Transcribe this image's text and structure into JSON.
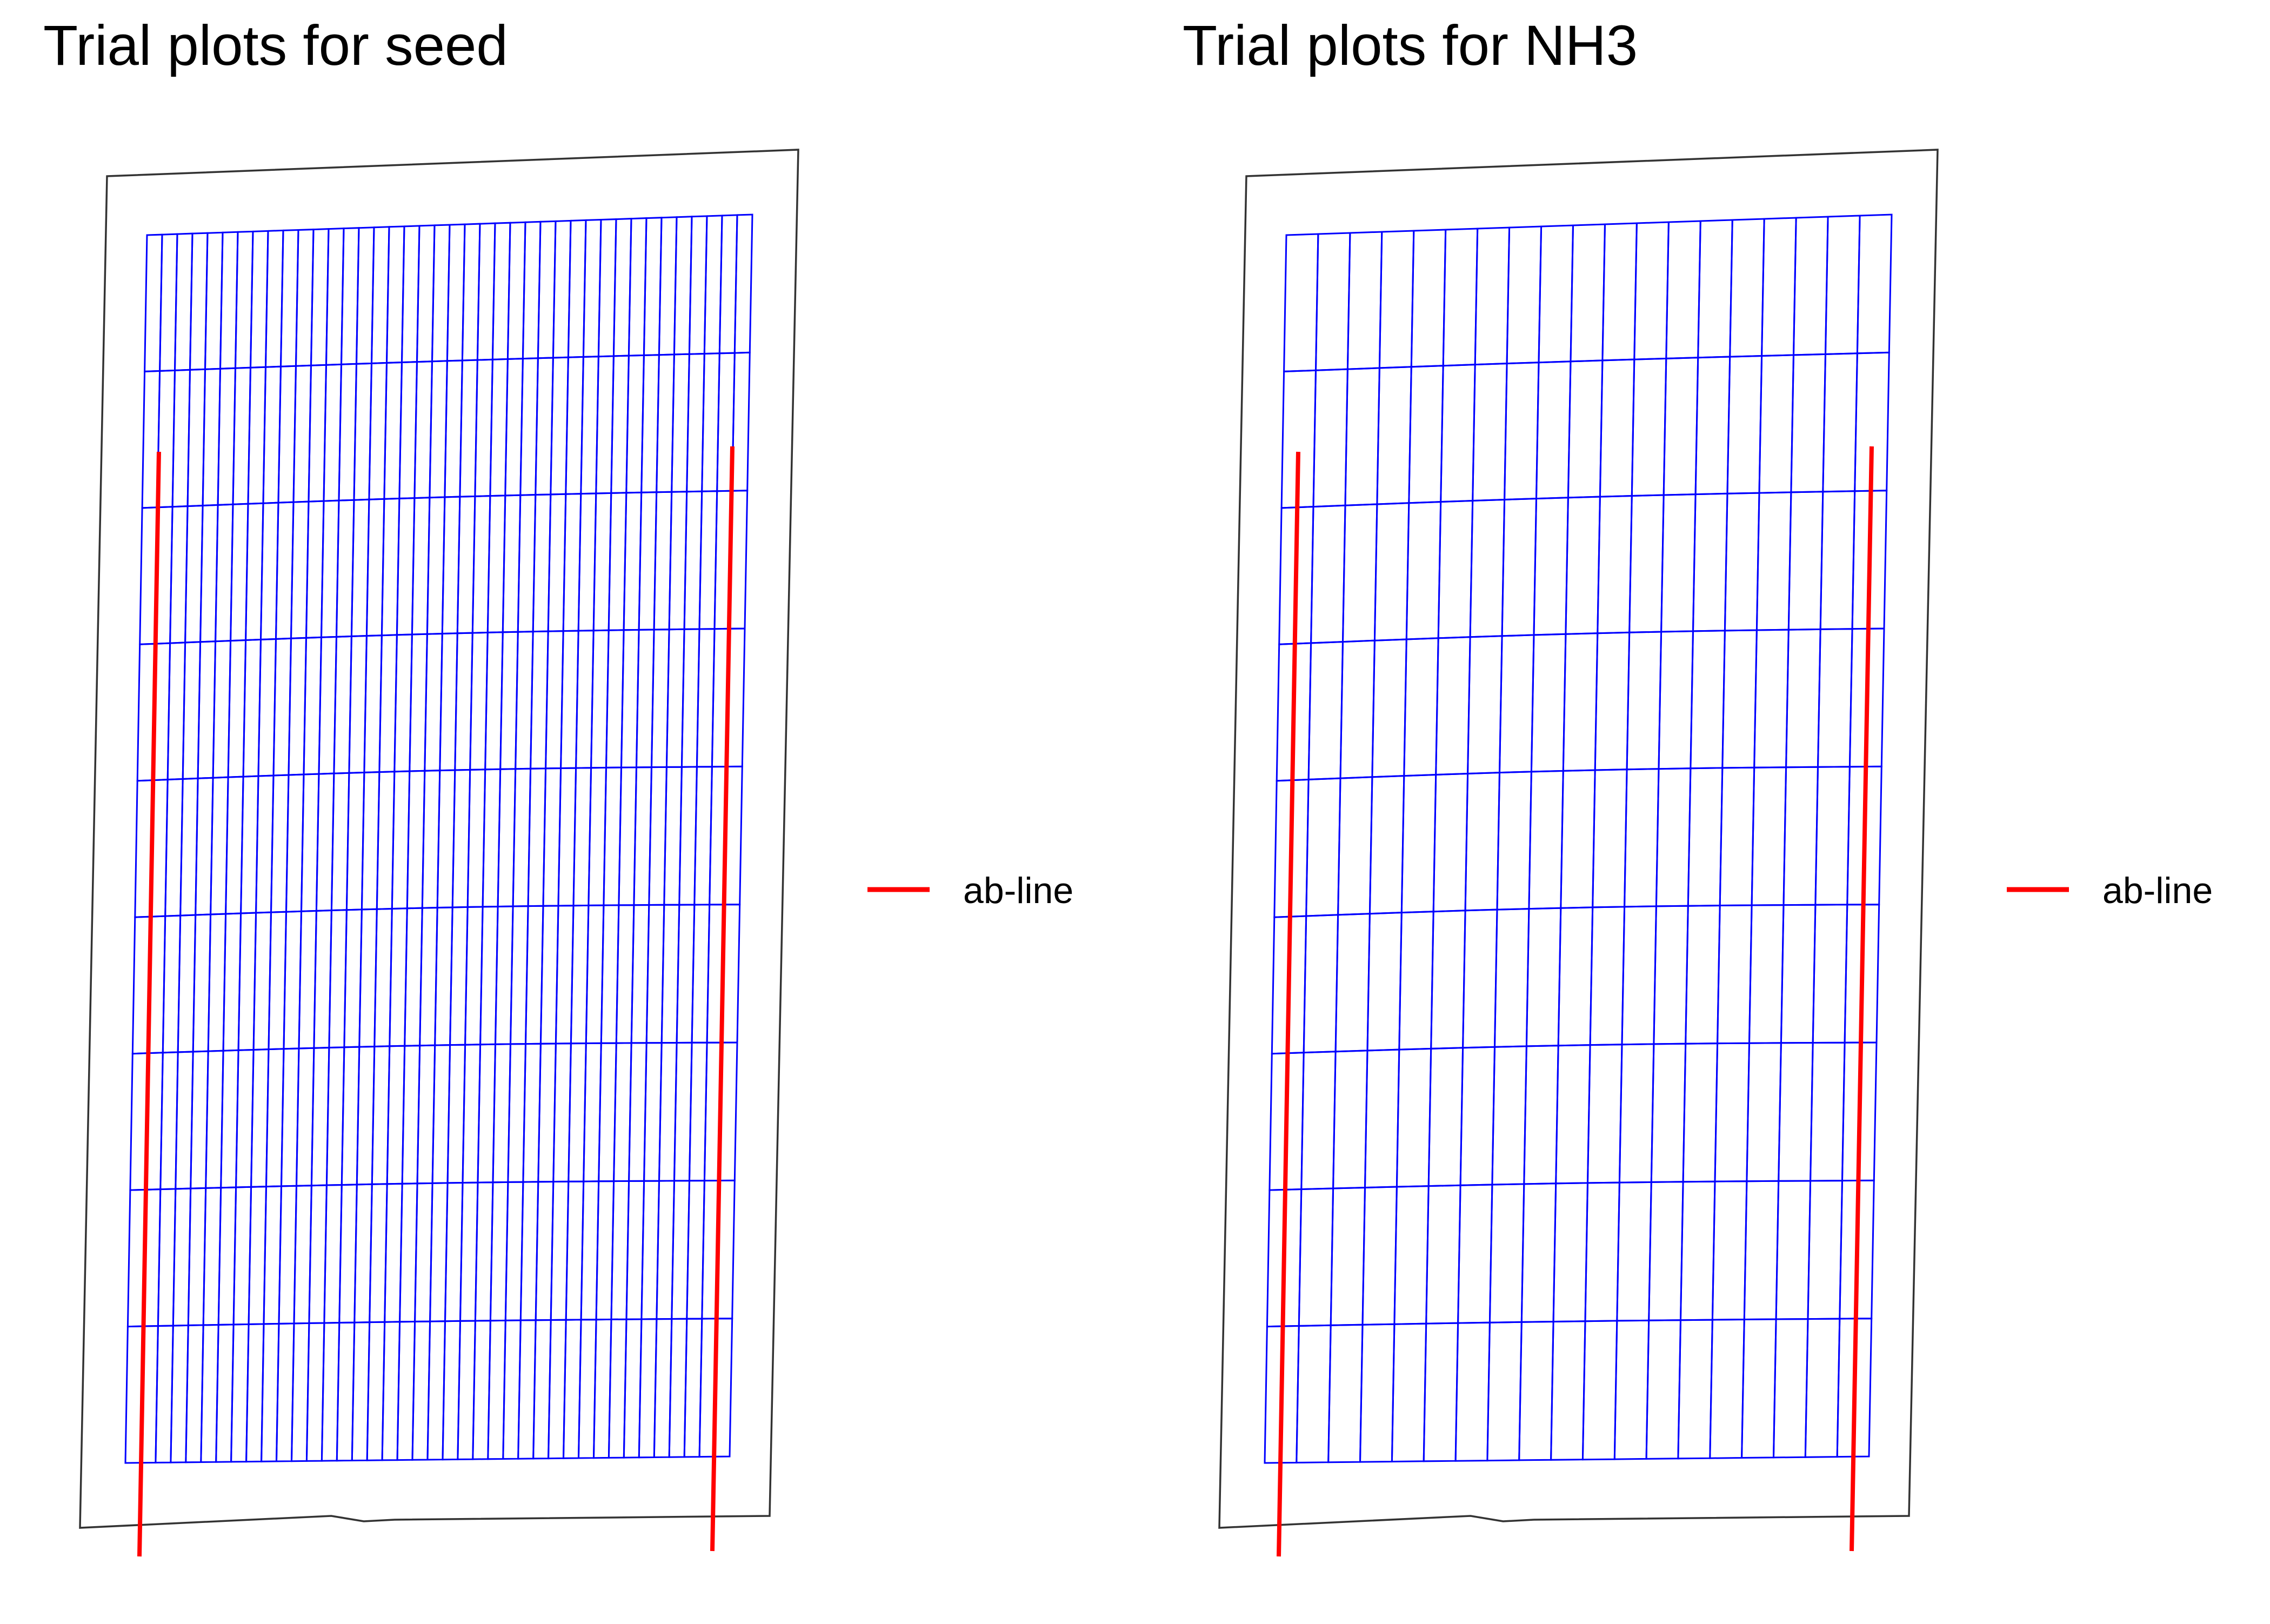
{
  "chart_data": [
    {
      "type": "map",
      "title": "Trial plots for seed",
      "plot_columns": 40,
      "plot_rows": 9,
      "plot_color": "#0000ff",
      "boundary_color": "#333333",
      "ab_line_color": "#ff0000",
      "legend": {
        "label": "ab-line",
        "placement": "right"
      }
    },
    {
      "type": "map",
      "title": "Trial plots for NH3",
      "plot_columns": 19,
      "plot_rows": 9,
      "plot_color": "#0000ff",
      "boundary_color": "#333333",
      "ab_line_color": "#ff0000",
      "legend": {
        "label": "ab-line",
        "placement": "right"
      }
    }
  ]
}
